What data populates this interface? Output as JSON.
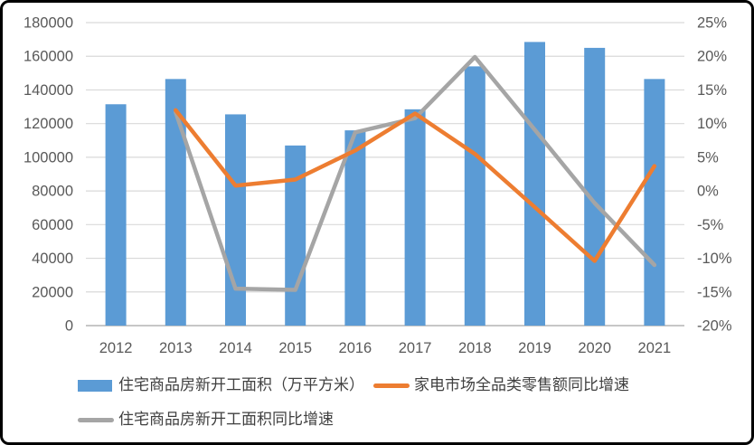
{
  "frame": {
    "background": "#ffffff",
    "border_color": "#000000"
  },
  "chart_data": {
    "type": "bar",
    "subtype": "combo-bar-line-dual-axis",
    "title": "",
    "categories": [
      "2012",
      "2013",
      "2014",
      "2015",
      "2016",
      "2017",
      "2018",
      "2019",
      "2020",
      "2021"
    ],
    "series": [
      {
        "name": "住宅商品房新开工面积（万平方米）",
        "type": "bar",
        "axis": "left",
        "color": "#5B9BD5",
        "values": [
          131500,
          146500,
          125500,
          107000,
          116000,
          128500,
          154000,
          168500,
          165000,
          146500
        ]
      },
      {
        "name": "家电市场全品类零售额同比增速",
        "type": "line",
        "axis": "right",
        "color": "#ED7D31",
        "values": [
          null,
          12.0,
          0.8,
          1.7,
          6.0,
          11.5,
          5.5,
          -2.4,
          -10.4,
          3.7
        ]
      },
      {
        "name": "住宅商品房新开工面积同比增速",
        "type": "line",
        "axis": "right",
        "color": "#A5A5A5",
        "values": [
          null,
          11.7,
          -14.5,
          -14.7,
          8.7,
          10.8,
          19.9,
          9.1,
          -1.8,
          -11.0
        ]
      }
    ],
    "left_axis": {
      "min": 0,
      "max": 180000,
      "step": 20000,
      "tick_labels": [
        "180000",
        "160000",
        "140000",
        "120000",
        "100000",
        "80000",
        "60000",
        "40000",
        "20000",
        "0"
      ]
    },
    "right_axis": {
      "min": -20,
      "max": 25,
      "step": 5,
      "unit": "%",
      "tick_labels": [
        "25%",
        "20%",
        "15%",
        "10%",
        "5%",
        "0%",
        "-5%",
        "-10%",
        "-15%",
        "-20%"
      ]
    },
    "grid": true,
    "legend_position": "bottom",
    "styles": {
      "gridline_color": "#D9D9D9",
      "axis_line_color": "#BFBFBF",
      "tick_text_color": "#595959",
      "legend_text_color": "#404040"
    }
  }
}
